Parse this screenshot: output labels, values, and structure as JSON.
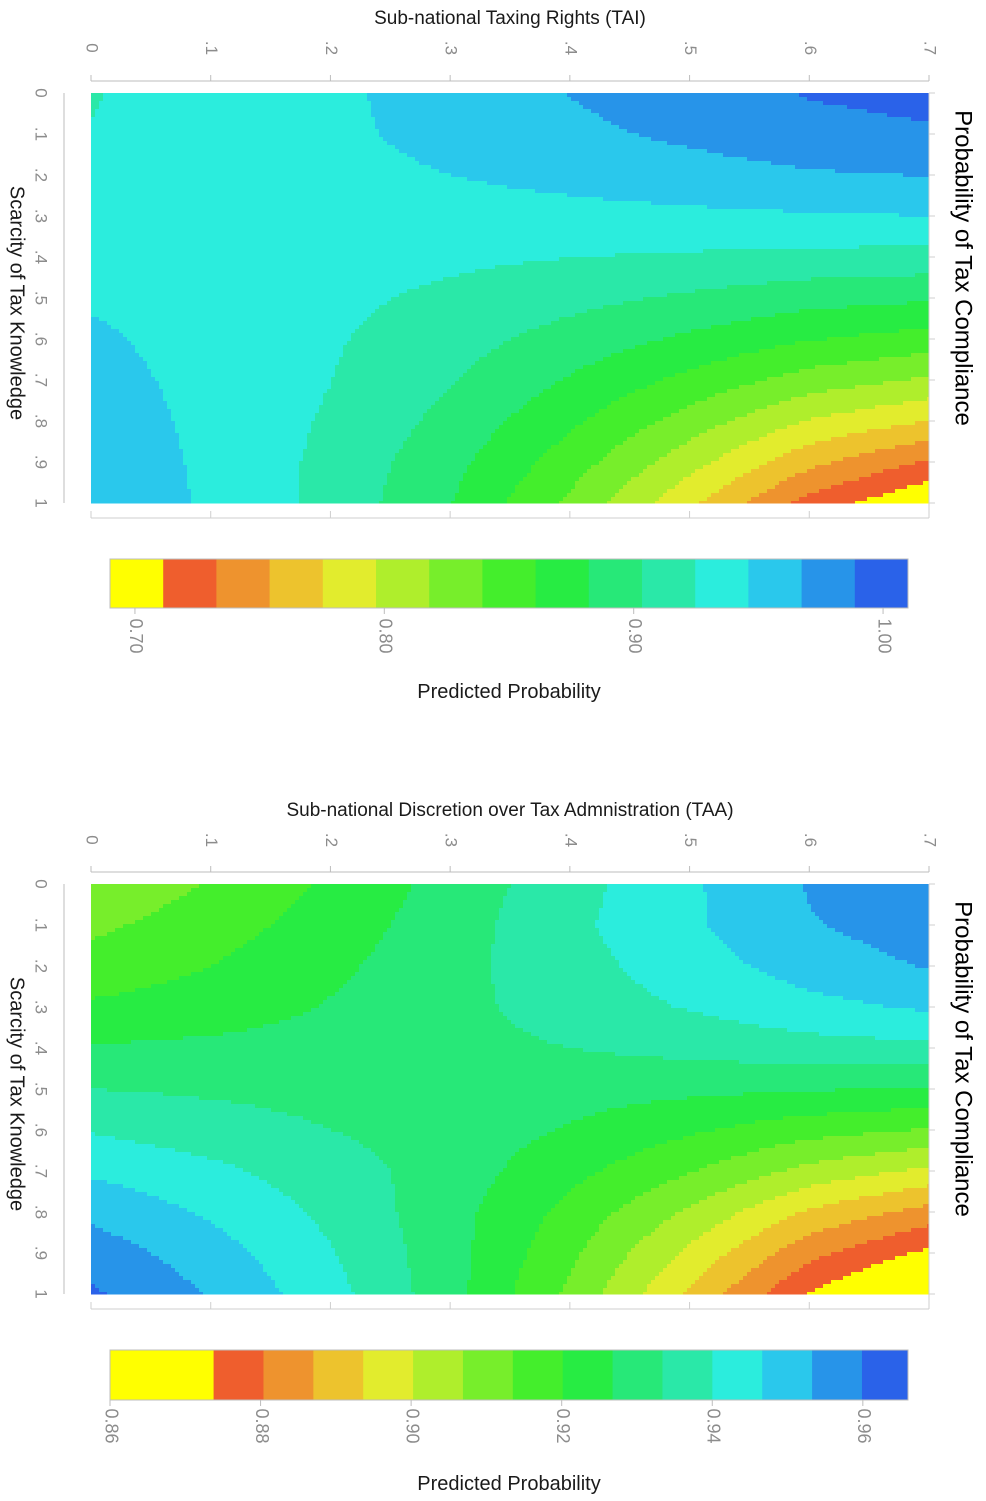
{
  "chart_data": [
    {
      "type": "heatmap",
      "title": "Sub-national Taxing Rights (TAI)",
      "xlabel": "Scarcity of Tax Knowledge",
      "ylabel": "Probability of Tax Compliance",
      "colorbar_label": "Predicted Probability",
      "x_ticks": [
        "0",
        ".1",
        ".2",
        ".3",
        ".4",
        ".5",
        ".6",
        ".7",
        ".8",
        ".9",
        "1"
      ],
      "y_ticks": [
        "0",
        ".1",
        ".2",
        ".3",
        ".4",
        ".5",
        ".6",
        ".7"
      ],
      "xlim": [
        0,
        1
      ],
      "ylim": [
        0,
        0.7
      ],
      "colorbar_ticks": [
        "0.70",
        "0.80",
        "0.90",
        "1.00"
      ],
      "colorbar_tick_values": [
        0.7,
        0.8,
        0.9,
        1.0
      ],
      "colorbar_range": [
        0.69,
        1.01
      ],
      "levels": [
        "#ffff00",
        "#ef5e2d",
        "#ee932e",
        "#edc32d",
        "#e2ec2d",
        "#afee2c",
        "#77ee2b",
        "#44ee2c",
        "#27ec43",
        "#27e878",
        "#2ae8a8",
        "#2beddd",
        "#2ac8ec",
        "#2794e9",
        "#2a62e9"
      ],
      "grid": {
        "x": [
          0,
          0.1,
          0.2,
          0.3,
          0.4,
          0.5,
          0.6,
          0.7,
          0.8,
          0.9,
          1
        ],
        "y": [
          0,
          0.1,
          0.2,
          0.3,
          0.4,
          0.5,
          0.6,
          0.7
        ],
        "z": [
          [
            0.924,
            0.93,
            0.942,
            0.955,
            0.968,
            0.98,
            0.99,
            0.995
          ],
          [
            0.925,
            0.93,
            0.942,
            0.952,
            0.962,
            0.972,
            0.982,
            0.986
          ],
          [
            0.93,
            0.935,
            0.94,
            0.946,
            0.952,
            0.958,
            0.965,
            0.968
          ],
          [
            0.935,
            0.936,
            0.937,
            0.938,
            0.94,
            0.942,
            0.944,
            0.946
          ],
          [
            0.94,
            0.937,
            0.933,
            0.929,
            0.925,
            0.922,
            0.919,
            0.917
          ],
          [
            0.944,
            0.938,
            0.93,
            0.92,
            0.91,
            0.9,
            0.89,
            0.885
          ],
          [
            0.949,
            0.939,
            0.927,
            0.912,
            0.895,
            0.878,
            0.862,
            0.852
          ],
          [
            0.953,
            0.94,
            0.925,
            0.905,
            0.88,
            0.855,
            0.83,
            0.815
          ],
          [
            0.957,
            0.941,
            0.922,
            0.897,
            0.865,
            0.83,
            0.795,
            0.775
          ],
          [
            0.96,
            0.942,
            0.919,
            0.889,
            0.85,
            0.805,
            0.76,
            0.73
          ],
          [
            0.962,
            0.943,
            0.918,
            0.883,
            0.835,
            0.78,
            0.725,
            0.69
          ]
        ]
      }
    },
    {
      "type": "heatmap",
      "title": "Sub-national Discretion over Tax Admnistration (TAA)",
      "xlabel": "Scarcity of Tax Knowledge",
      "ylabel": "Probability of Tax Compliance",
      "colorbar_label": "Predicted Probability",
      "x_ticks": [
        "0",
        ".1",
        ".2",
        ".3",
        ".4",
        ".5",
        ".6",
        ".7",
        ".8",
        ".9",
        "1"
      ],
      "y_ticks": [
        "0",
        ".1",
        ".2",
        ".3",
        ".4",
        ".5",
        ".6",
        ".7"
      ],
      "xlim": [
        0,
        1
      ],
      "ylim": [
        0,
        0.7
      ],
      "colorbar_ticks": [
        "0.86",
        "0.88",
        "0.90",
        "0.92",
        "0.94",
        "0.96"
      ],
      "colorbar_tick_values": [
        0.86,
        0.88,
        0.9,
        0.92,
        0.94,
        0.96
      ],
      "colorbar_range": [
        0.86,
        0.966
      ],
      "levels": [
        "#ffff00",
        "#ef5e2d",
        "#ee932e",
        "#edc32d",
        "#e2ec2d",
        "#afee2c",
        "#77ee2b",
        "#44ee2c",
        "#27ec43",
        "#27e878",
        "#2ae8a8",
        "#2beddd",
        "#2ac8ec",
        "#2794e9",
        "#2a62e9"
      ],
      "level_edges": [
        0.86,
        0.8735,
        0.88,
        0.8865,
        0.893,
        0.8995,
        0.906,
        0.9125,
        0.919,
        0.9255,
        0.932,
        0.9385,
        0.945,
        0.9515,
        0.958,
        0.964
      ],
      "grid": {
        "x": [
          0,
          0.1,
          0.2,
          0.3,
          0.4,
          0.5,
          0.6,
          0.7,
          0.8,
          0.9,
          1
        ],
        "y": [
          0,
          0.1,
          0.2,
          0.3,
          0.4,
          0.5,
          0.6,
          0.7
        ],
        "z": [
          [
            0.907,
            0.913,
            0.92,
            0.928,
            0.936,
            0.944,
            0.952,
            0.958
          ],
          [
            0.911,
            0.916,
            0.922,
            0.929,
            0.937,
            0.944,
            0.951,
            0.955
          ],
          [
            0.915,
            0.919,
            0.924,
            0.93,
            0.936,
            0.942,
            0.948,
            0.952
          ],
          [
            0.92,
            0.922,
            0.926,
            0.93,
            0.935,
            0.939,
            0.943,
            0.946
          ],
          [
            0.926,
            0.927,
            0.928,
            0.93,
            0.932,
            0.934,
            0.936,
            0.937
          ],
          [
            0.932,
            0.931,
            0.93,
            0.929,
            0.928,
            0.927,
            0.926,
            0.925
          ],
          [
            0.938,
            0.935,
            0.932,
            0.929,
            0.925,
            0.92,
            0.915,
            0.912
          ],
          [
            0.944,
            0.94,
            0.935,
            0.929,
            0.921,
            0.913,
            0.904,
            0.898
          ],
          [
            0.95,
            0.944,
            0.937,
            0.928,
            0.917,
            0.905,
            0.892,
            0.884
          ],
          [
            0.955,
            0.948,
            0.939,
            0.928,
            0.914,
            0.898,
            0.882,
            0.872
          ],
          [
            0.959,
            0.951,
            0.941,
            0.928,
            0.911,
            0.892,
            0.873,
            0.861
          ]
        ]
      }
    }
  ]
}
